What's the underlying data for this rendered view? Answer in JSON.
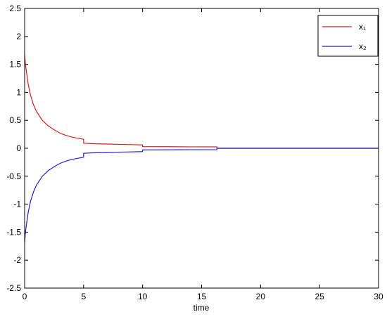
{
  "chart_data": {
    "type": "line",
    "x_label": "time",
    "x": [
      0,
      0.05,
      0.1,
      0.2,
      0.3,
      0.5,
      0.75,
      1,
      1.5,
      2,
      2.5,
      3,
      3.5,
      4,
      4.5,
      5,
      5,
      6,
      7,
      8,
      9,
      10,
      10,
      12,
      14,
      16.3,
      16.3,
      20,
      25,
      30
    ],
    "series": [
      {
        "name": "x₁",
        "color": "#d41f1f",
        "values": [
          1.68,
          1.55,
          1.45,
          1.3,
          1.15,
          0.95,
          0.78,
          0.66,
          0.5,
          0.4,
          0.33,
          0.27,
          0.23,
          0.2,
          0.18,
          0.16,
          0.09,
          0.08,
          0.075,
          0.07,
          0.065,
          0.06,
          0.03,
          0.028,
          0.026,
          0.025,
          0,
          0,
          0,
          0
        ]
      },
      {
        "name": "x₂",
        "color": "#1f1fd4",
        "values": [
          -1.68,
          -1.55,
          -1.45,
          -1.3,
          -1.15,
          -0.95,
          -0.78,
          -0.66,
          -0.5,
          -0.4,
          -0.33,
          -0.27,
          -0.23,
          -0.2,
          -0.18,
          -0.16,
          -0.09,
          -0.08,
          -0.075,
          -0.07,
          -0.065,
          -0.06,
          -0.03,
          -0.028,
          -0.026,
          -0.025,
          0,
          0,
          0,
          0
        ]
      }
    ],
    "xlim": [
      0,
      30
    ],
    "xticks": [
      0,
      5,
      10,
      15,
      20,
      25,
      30
    ],
    "ylim": [
      -2.5,
      2.5
    ],
    "yticks": [
      -2.5,
      -2,
      -1.5,
      -1,
      -0.5,
      0,
      0.5,
      1,
      1.5,
      2,
      2.5
    ],
    "legend": "northeast",
    "grid": false
  }
}
